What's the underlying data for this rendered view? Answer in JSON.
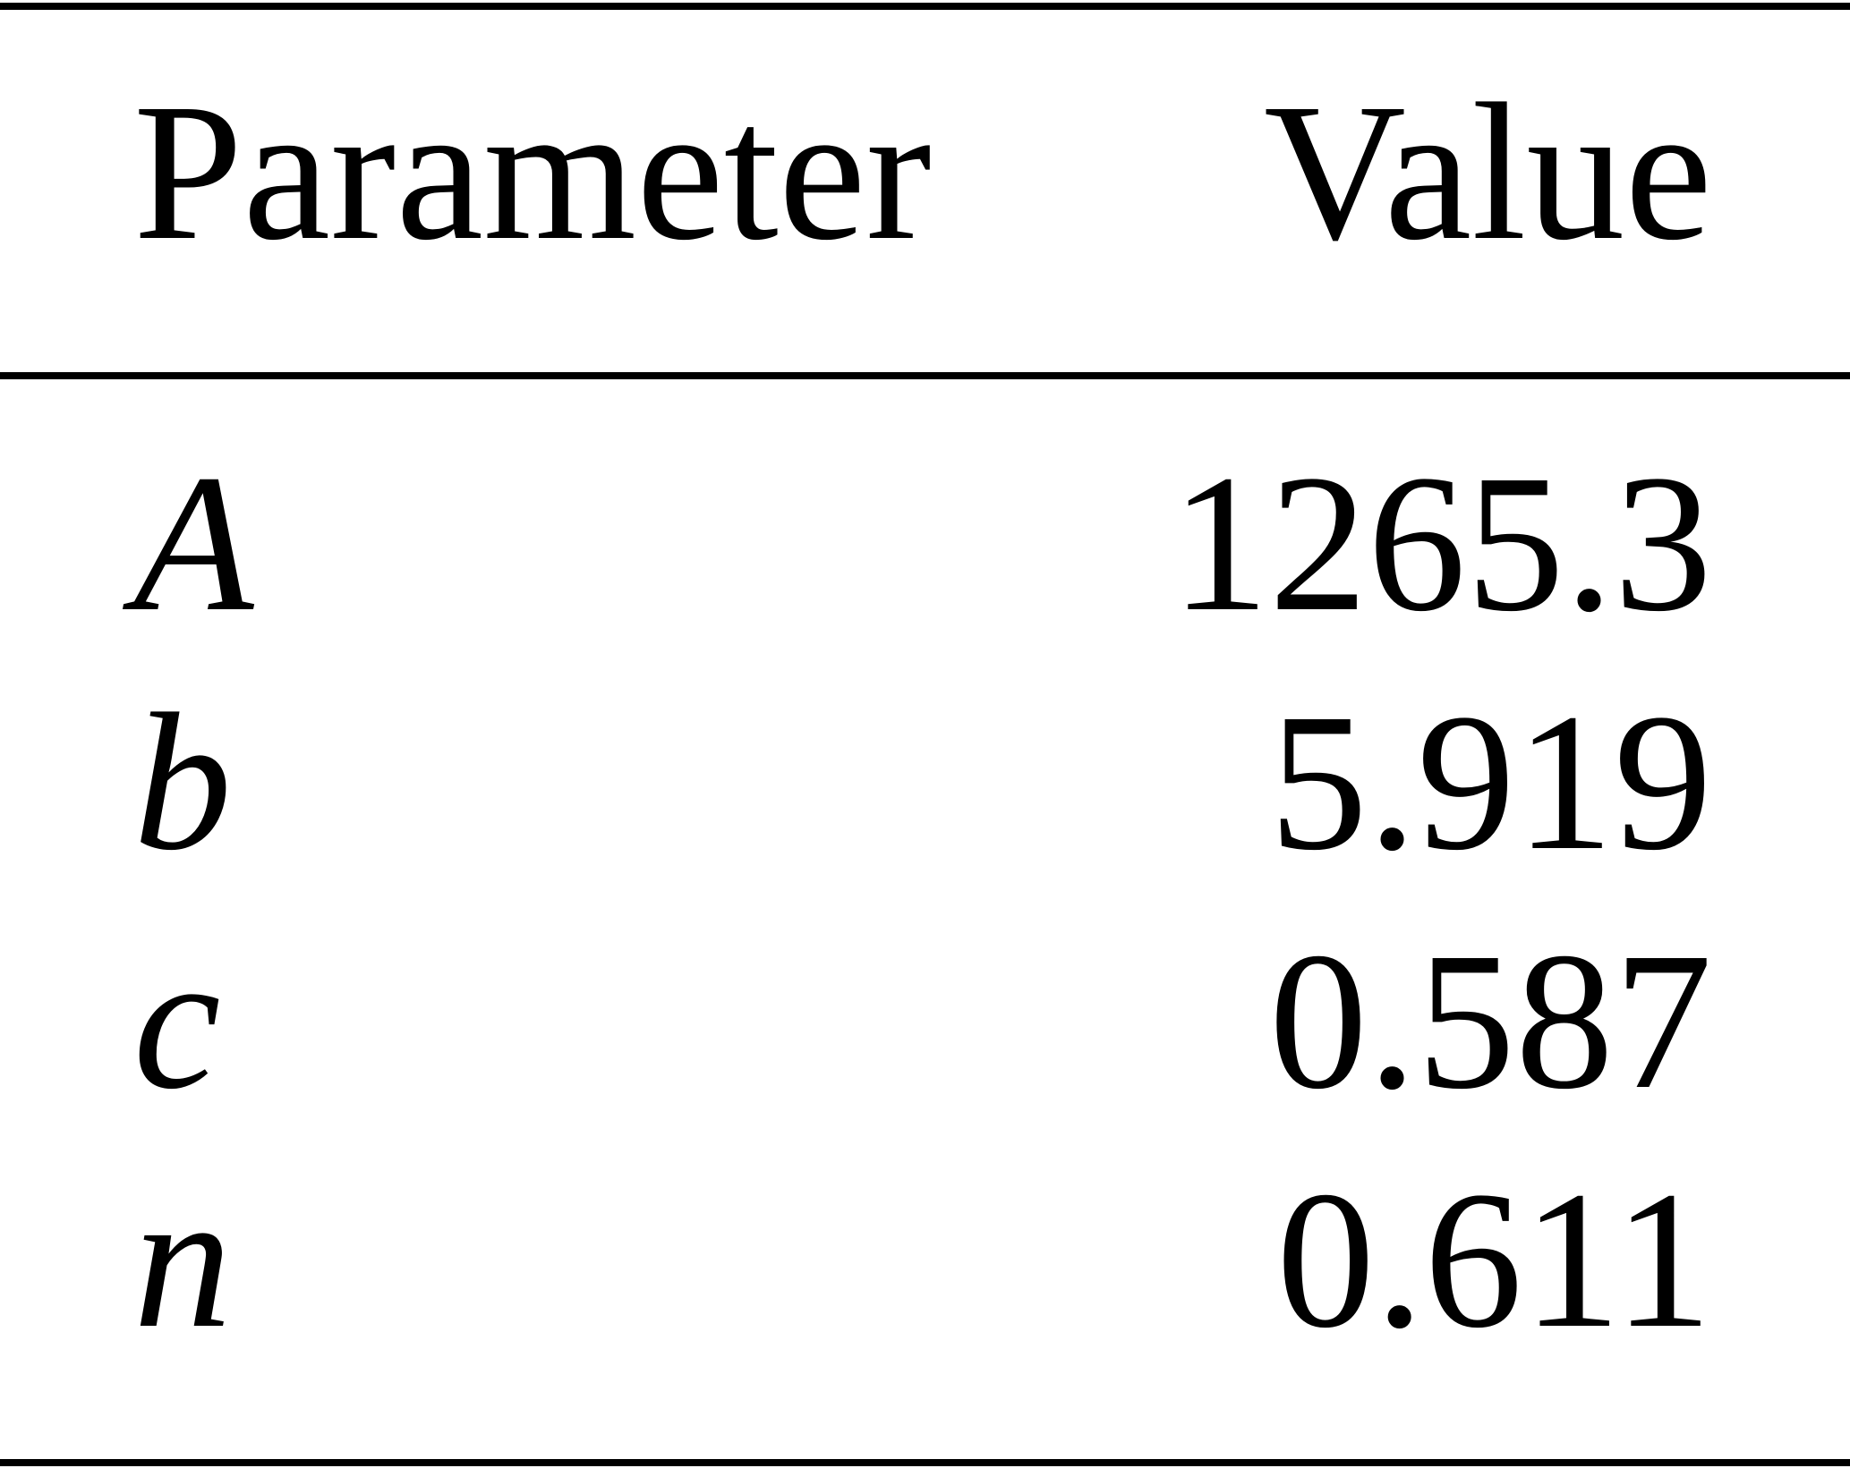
{
  "table": {
    "header": [
      "Parameter",
      "Value"
    ],
    "rows": [
      [
        "A",
        "1265.3"
      ],
      [
        "b",
        "5.919"
      ],
      [
        "c",
        "0.587"
      ],
      [
        "n",
        "0.611"
      ]
    ]
  }
}
